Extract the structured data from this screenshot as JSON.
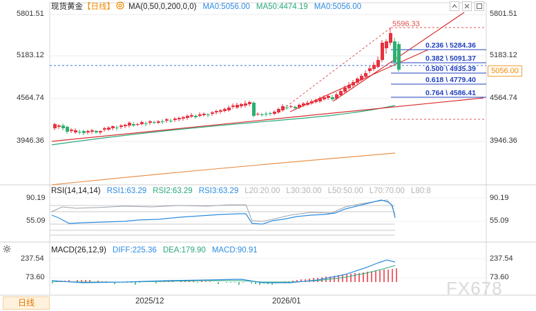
{
  "header": {
    "symbol": "现货黄金",
    "period_bracket": "【日线】",
    "ma_indicator": "MA(0,50,0,200,0,0)",
    "ma_values": [
      "MA0:5056.00",
      "MA50:4474.19",
      "MA0:5056.00"
    ]
  },
  "price_axis": {
    "labels": [
      "5801.51",
      "5183.12",
      "4564.74",
      "3946.36"
    ],
    "current_price": "5056.00"
  },
  "fib": {
    "high_label": "5596.33",
    "levels": [
      "0.236 \\ 5284.36",
      "0.382 \\ 5091.37",
      "0.500 \\ 4935.39",
      "0.618 \\ 4779.40",
      "0.764 \\ 4586.41"
    ]
  },
  "rsi": {
    "title": "RSI(14,14,14)",
    "values": [
      "RSI1:63.29",
      "RSI2:63.29",
      "RSI3:63.29"
    ],
    "levels": [
      "L20:20.00",
      "L30:30.00",
      "L50:50.00",
      "L70:70.00",
      "L80:8"
    ],
    "axis": [
      "90.19",
      "55.09"
    ]
  },
  "macd": {
    "title": "MACD(26,12,9)",
    "values": [
      "DIFF:225.36",
      "DEA:179.90",
      "MACD:90.91"
    ],
    "axis": [
      "237.54",
      "73.60"
    ]
  },
  "footer": {
    "period_button": "日线",
    "x_labels": [
      "2025/12",
      "2026/01"
    ]
  },
  "watermark": "FX678",
  "colors": {
    "up": "#e8313f",
    "down": "#2bb070",
    "ma50": "#2aa87a",
    "ma200": "#e8914a",
    "fib_blue": "#1f3fbf",
    "accent_orange": "#f08a00",
    "rsi_blue": "#2d8ce0",
    "rsi_gray": "#9aa3ad"
  },
  "icons": [
    "gear-icon",
    "collapse-icon",
    "close-icon",
    "expand-icon",
    "settings-icon"
  ]
}
